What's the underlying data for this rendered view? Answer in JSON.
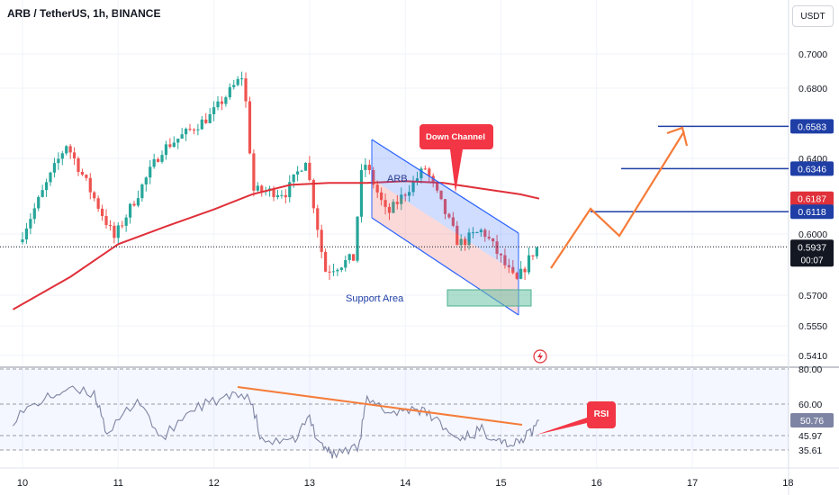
{
  "title": "ARB / TetherUS, 1h, BINANCE",
  "currency": "USDT",
  "colors": {
    "up": "#26a69a",
    "down": "#ef5350",
    "ma": "#e0303a",
    "channel": "#2962ff",
    "level": "#1f3fa6",
    "projection": "#f57c3a",
    "rsi": "#7e84a3",
    "support": "#6cc2a4"
  },
  "chart_data": [
    {
      "type": "candlestick",
      "title": "ARB / TetherUS, 1h, BINANCE",
      "x_ticks": [
        "10",
        "11",
        "12",
        "13",
        "14",
        "15",
        "16",
        "17",
        "18"
      ],
      "y_ticks": [
        "0.7000",
        "0.6800",
        "0.6400",
        "0.6000",
        "0.5700",
        "0.5550",
        "0.5410"
      ],
      "ylim": [
        0.535,
        0.725
      ],
      "price_tags": [
        {
          "value": "0.6583",
          "y": 0.6583,
          "color": "#1f3fa6"
        },
        {
          "value": "0.6346",
          "y": 0.6346,
          "color": "#1f3fa6"
        },
        {
          "value": "0.6187",
          "y": 0.6187,
          "color": "#e0303a"
        },
        {
          "value": "0.6118",
          "y": 0.6118,
          "color": "#1f3fa6"
        },
        {
          "value": "0.5937",
          "y": 0.5937,
          "color": "#131722",
          "extra": "00:07"
        }
      ],
      "annotations": {
        "down_channel_label": "Down Channel",
        "support_label": "Support Area",
        "symbol_label": "ARB"
      },
      "key_points": [
        {
          "day": 10.0,
          "price": 0.596
        },
        {
          "day": 10.5,
          "price": 0.648
        },
        {
          "day": 11.0,
          "price": 0.598
        },
        {
          "day": 11.5,
          "price": 0.645
        },
        {
          "day": 12.0,
          "price": 0.664
        },
        {
          "day": 12.35,
          "price": 0.688
        },
        {
          "day": 12.45,
          "price": 0.623
        },
        {
          "day": 12.8,
          "price": 0.622
        },
        {
          "day": 13.0,
          "price": 0.64
        },
        {
          "day": 13.2,
          "price": 0.582
        },
        {
          "day": 13.5,
          "price": 0.588
        },
        {
          "day": 13.6,
          "price": 0.64
        },
        {
          "day": 13.85,
          "price": 0.61
        },
        {
          "day": 14.25,
          "price": 0.635
        },
        {
          "day": 14.6,
          "price": 0.595
        },
        {
          "day": 14.85,
          "price": 0.602
        },
        {
          "day": 15.2,
          "price": 0.576
        },
        {
          "day": 15.4,
          "price": 0.593
        }
      ],
      "moving_average": [
        {
          "day": 9.9,
          "price": 0.563
        },
        {
          "day": 10.5,
          "price": 0.579
        },
        {
          "day": 11.0,
          "price": 0.595
        },
        {
          "day": 11.5,
          "price": 0.604
        },
        {
          "day": 12.0,
          "price": 0.613
        },
        {
          "day": 12.4,
          "price": 0.621
        },
        {
          "day": 12.8,
          "price": 0.626
        },
        {
          "day": 13.2,
          "price": 0.627
        },
        {
          "day": 13.6,
          "price": 0.627
        },
        {
          "day": 14.0,
          "price": 0.628
        },
        {
          "day": 14.4,
          "price": 0.627
        },
        {
          "day": 14.8,
          "price": 0.624
        },
        {
          "day": 15.2,
          "price": 0.621
        },
        {
          "day": 15.4,
          "price": 0.6187
        }
      ]
    },
    {
      "type": "line",
      "title": "RSI",
      "y_ticks": [
        "80.00",
        "60.00",
        "45.97",
        "35.61"
      ],
      "current_value": "50.76",
      "label": "RSI",
      "ylim": [
        26,
        84
      ],
      "values": [
        {
          "day": 9.9,
          "v": 52
        },
        {
          "day": 10.2,
          "v": 62
        },
        {
          "day": 10.45,
          "v": 68
        },
        {
          "day": 10.75,
          "v": 66
        },
        {
          "day": 10.9,
          "v": 44
        },
        {
          "day": 11.2,
          "v": 63
        },
        {
          "day": 11.45,
          "v": 43
        },
        {
          "day": 11.8,
          "v": 58
        },
        {
          "day": 12.1,
          "v": 63
        },
        {
          "day": 12.35,
          "v": 66
        },
        {
          "day": 12.5,
          "v": 42
        },
        {
          "day": 12.8,
          "v": 41
        },
        {
          "day": 13.0,
          "v": 52
        },
        {
          "day": 13.15,
          "v": 38
        },
        {
          "day": 13.25,
          "v": 33
        },
        {
          "day": 13.5,
          "v": 38
        },
        {
          "day": 13.6,
          "v": 62
        },
        {
          "day": 13.85,
          "v": 55
        },
        {
          "day": 14.1,
          "v": 58
        },
        {
          "day": 14.3,
          "v": 52
        },
        {
          "day": 14.55,
          "v": 44
        },
        {
          "day": 14.75,
          "v": 47
        },
        {
          "day": 14.95,
          "v": 45
        },
        {
          "day": 15.1,
          "v": 39
        },
        {
          "day": 15.25,
          "v": 44
        },
        {
          "day": 15.4,
          "v": 50.76
        }
      ]
    }
  ]
}
